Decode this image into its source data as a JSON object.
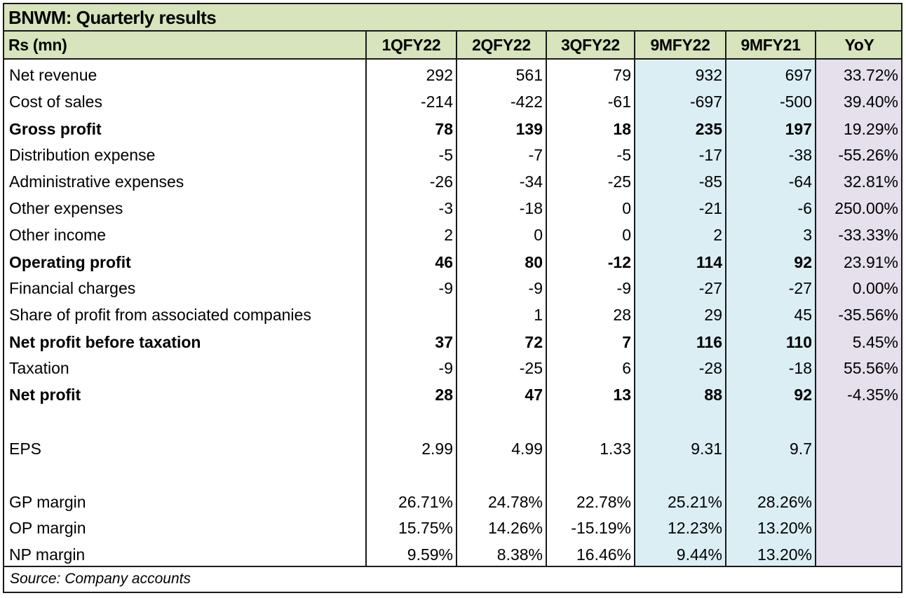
{
  "title": "BNWM: Quarterly results",
  "header": [
    "Rs (mn)",
    "1QFY22",
    "2QFY22",
    "3QFY22",
    "9MFY22",
    "9MFY21",
    "YoY"
  ],
  "rows": [
    {
      "label": "Net revenue",
      "bold": false,
      "values": [
        "292",
        "561",
        "79",
        "932",
        "697",
        "33.72%"
      ]
    },
    {
      "label": "Cost of sales",
      "bold": false,
      "values": [
        "-214",
        "-422",
        "-61",
        "-697",
        "-500",
        "39.40%"
      ]
    },
    {
      "label": "Gross profit",
      "bold": true,
      "values": [
        "78",
        "139",
        "18",
        "235",
        "197",
        "19.29%"
      ]
    },
    {
      "label": "Distribution expense",
      "bold": false,
      "values": [
        "-5",
        "-7",
        "-5",
        "-17",
        "-38",
        "-55.26%"
      ]
    },
    {
      "label": "Administrative expenses",
      "bold": false,
      "values": [
        "-26",
        "-34",
        "-25",
        "-85",
        "-64",
        "32.81%"
      ]
    },
    {
      "label": "Other expenses",
      "bold": false,
      "values": [
        "-3",
        "-18",
        "0",
        "-21",
        "-6",
        "250.00%"
      ]
    },
    {
      "label": "Other income",
      "bold": false,
      "values": [
        "2",
        "0",
        "0",
        "2",
        "3",
        "-33.33%"
      ]
    },
    {
      "label": "Operating profit",
      "bold": true,
      "values": [
        "46",
        "80",
        "-12",
        "114",
        "92",
        "23.91%"
      ]
    },
    {
      "label": "Financial charges",
      "bold": false,
      "values": [
        "-9",
        "-9",
        "-9",
        "-27",
        "-27",
        "0.00%"
      ]
    },
    {
      "label": "Share of profit from associated companies",
      "bold": false,
      "values": [
        "",
        "1",
        "28",
        "29",
        "45",
        "-35.56%"
      ]
    },
    {
      "label": "Net profit before taxation",
      "bold": true,
      "values": [
        "37",
        "72",
        "7",
        "116",
        "110",
        "5.45%"
      ]
    },
    {
      "label": "Taxation",
      "bold": false,
      "values": [
        "-9",
        "-25",
        "6",
        "-28",
        "-18",
        "55.56%"
      ]
    },
    {
      "label": "Net profit",
      "bold": true,
      "values": [
        "28",
        "47",
        "13",
        "88",
        "92",
        "-4.35%"
      ]
    },
    {
      "label": "EPS",
      "bold": false,
      "values": [
        "2.99",
        "4.99",
        "1.33",
        "9.31",
        "9.7",
        ""
      ]
    },
    {
      "label": "GP margin",
      "bold": false,
      "values": [
        "26.71%",
        "24.78%",
        "22.78%",
        "25.21%",
        "28.26%",
        ""
      ]
    },
    {
      "label": "OP margin",
      "bold": false,
      "values": [
        "15.75%",
        "14.26%",
        "-15.19%",
        "12.23%",
        "13.20%",
        ""
      ]
    },
    {
      "label": "NP margin",
      "bold": false,
      "values": [
        "9.59%",
        "8.38%",
        "16.46%",
        "9.44%",
        "13.20%",
        ""
      ]
    }
  ],
  "source": "Source: Company accounts",
  "colors": {
    "header_green": "#d7e4bc",
    "nine_month_blue": "#dbeef4",
    "yoy_lavender": "#e5e0ec"
  }
}
